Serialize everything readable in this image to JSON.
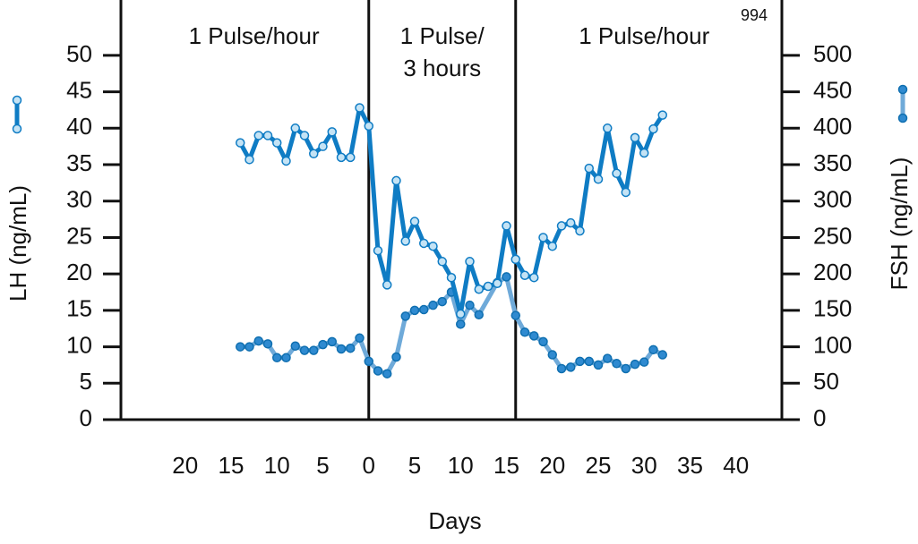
{
  "chart_data": {
    "type": "line",
    "figure_number": "994",
    "x_label": "Days",
    "y_label": "LH (ng/mL)",
    "y2_label": "FSH (ng/mL)",
    "xlim": [
      -27,
      45
    ],
    "xticks": [
      {
        "value": -20,
        "label": "20"
      },
      {
        "value": -15,
        "label": "15"
      },
      {
        "value": -10,
        "label": "10"
      },
      {
        "value": -5,
        "label": "5"
      },
      0,
      5,
      10,
      15,
      20,
      25,
      30,
      35,
      40
    ],
    "ylim": [
      0,
      57.6
    ],
    "yticks": [
      0,
      5,
      10,
      15,
      20,
      25,
      30,
      35,
      40,
      45,
      50
    ],
    "y2lim": [
      0,
      576
    ],
    "y2ticks": [
      0,
      50,
      100,
      150,
      200,
      250,
      300,
      350,
      400,
      450,
      500
    ],
    "dividers": [
      0,
      16
    ],
    "regions": [
      {
        "x": -12.5,
        "lines": [
          "1 Pulse/hour"
        ]
      },
      {
        "x": 8,
        "lines": [
          "1 Pulse/",
          "3 hours"
        ]
      },
      {
        "x": 30,
        "lines": [
          "1 Pulse/hour"
        ]
      }
    ],
    "series": [
      {
        "name": "LH",
        "color": "#0f7cc4",
        "marker_fill": "#c4e3f5",
        "x": [
          -14,
          -13,
          -12,
          -11,
          -10,
          -9,
          -8,
          -7,
          -6,
          -5,
          -4,
          -3,
          -2,
          -1,
          0,
          1,
          2,
          3,
          4,
          5,
          6,
          7,
          8,
          9,
          10,
          11,
          12,
          13,
          14,
          15,
          16,
          17,
          18,
          19,
          20,
          21,
          22,
          23,
          24,
          25,
          26,
          27,
          28,
          29,
          30,
          31,
          32
        ],
        "values": [
          38,
          35.7,
          39,
          39,
          38,
          35.5,
          40,
          39,
          36.5,
          37.5,
          39.5,
          36,
          36,
          42.8,
          40.3,
          23.2,
          18.5,
          32.8,
          24.5,
          27.2,
          24.2,
          23.8,
          21.7,
          19.5,
          14.5,
          21.7,
          17.9,
          18.3,
          18.7,
          26.6,
          22,
          19.8,
          19.5,
          25,
          23.8,
          26.6,
          27,
          25.9,
          34.5,
          33,
          40,
          33.8,
          31.2,
          38.7,
          36.6,
          39.9,
          41.8
        ]
      },
      {
        "name": "FSH",
        "axis": "y2",
        "color": "#6faad9",
        "marker_fill": "#2f8ad0",
        "x": [
          -14,
          -13,
          -12,
          -11,
          -10,
          -9,
          -8,
          -7,
          -6,
          -5,
          -4,
          -3,
          -2,
          -1,
          0,
          1,
          2,
          3,
          4,
          5,
          6,
          7,
          8,
          9,
          10,
          11,
          12,
          14,
          15,
          16,
          17,
          18,
          19,
          20,
          21,
          22,
          23,
          24,
          25,
          26,
          27,
          28,
          29,
          30,
          31,
          32
        ],
        "values": [
          100,
          100,
          108,
          104,
          85,
          85,
          101,
          95,
          95,
          103,
          107,
          97,
          98,
          112,
          80,
          67,
          63,
          86,
          142,
          150,
          151,
          157,
          162,
          175,
          131,
          157,
          144,
          188,
          196,
          143,
          120,
          115,
          107,
          89,
          70,
          72,
          80,
          80,
          75,
          84,
          77,
          70,
          76,
          79,
          96,
          89
        ]
      }
    ]
  }
}
